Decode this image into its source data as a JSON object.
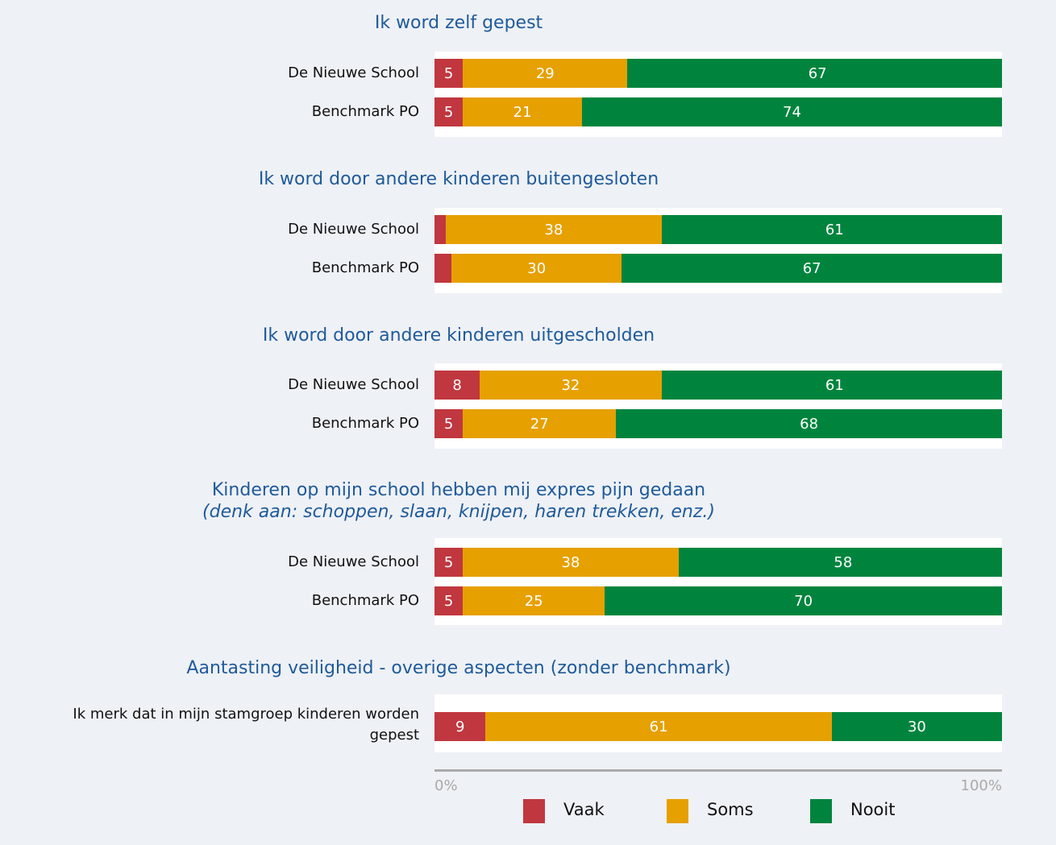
{
  "chart_data": [
    {
      "type": "stacked-bar",
      "title": "Ik word zelf gepest",
      "categories": [
        "De Nieuwe School",
        "Benchmark PO"
      ],
      "series": [
        {
          "color": "#c0373f",
          "values": [
            5,
            5
          ]
        },
        {
          "color": "#e6a000",
          "values": [
            29,
            21
          ]
        },
        {
          "color": "#00843d",
          "values": [
            67,
            74
          ]
        }
      ]
    },
    {
      "type": "stacked-bar",
      "title": "Ik word door andere kinderen buitengesloten",
      "categories": [
        "De Nieuwe School",
        "Benchmark PO"
      ],
      "series": [
        {
          "color": "#c0373f",
          "values": [
            2,
            3
          ],
          "value_labels": [
            null,
            null
          ]
        },
        {
          "color": "#e6a000",
          "values": [
            38,
            30
          ]
        },
        {
          "color": "#00843d",
          "values": [
            61,
            67
          ]
        }
      ]
    },
    {
      "type": "stacked-bar",
      "title": "Ik word door andere kinderen uitgescholden",
      "categories": [
        "De Nieuwe School",
        "Benchmark PO"
      ],
      "series": [
        {
          "color": "#c0373f",
          "values": [
            8,
            5
          ]
        },
        {
          "color": "#e6a000",
          "values": [
            32,
            27
          ]
        },
        {
          "color": "#00843d",
          "values": [
            61,
            68
          ]
        }
      ]
    },
    {
      "type": "stacked-bar",
      "title": "Kinderen op mijn school hebben mij expres pijn gedaan",
      "subtitle": "(denk aan: schoppen, slaan, knijpen, haren trekken, enz.)",
      "categories": [
        "De Nieuwe School",
        "Benchmark PO"
      ],
      "series": [
        {
          "color": "#c0373f",
          "values": [
            5,
            5
          ]
        },
        {
          "color": "#e6a000",
          "values": [
            38,
            25
          ]
        },
        {
          "color": "#00843d",
          "values": [
            58,
            70
          ]
        }
      ]
    },
    {
      "type": "stacked-bar",
      "title": "Aantasting veiligheid - overige aspecten (zonder benchmark)",
      "categories": [
        "Ik merk dat in mijn stamgroep kinderen worden gepest"
      ],
      "series": [
        {
          "name": "Vaak",
          "color": "#c0373f",
          "values": [
            9
          ]
        },
        {
          "name": "Soms",
          "color": "#e6a000",
          "values": [
            61
          ]
        },
        {
          "name": "Nooit",
          "color": "#00843d",
          "values": [
            30
          ]
        }
      ],
      "xlim": [
        0,
        100
      ],
      "xticks": [
        {
          "value": 0,
          "label": "0%"
        },
        {
          "value": 100,
          "label": "100%"
        }
      ]
    }
  ]
}
